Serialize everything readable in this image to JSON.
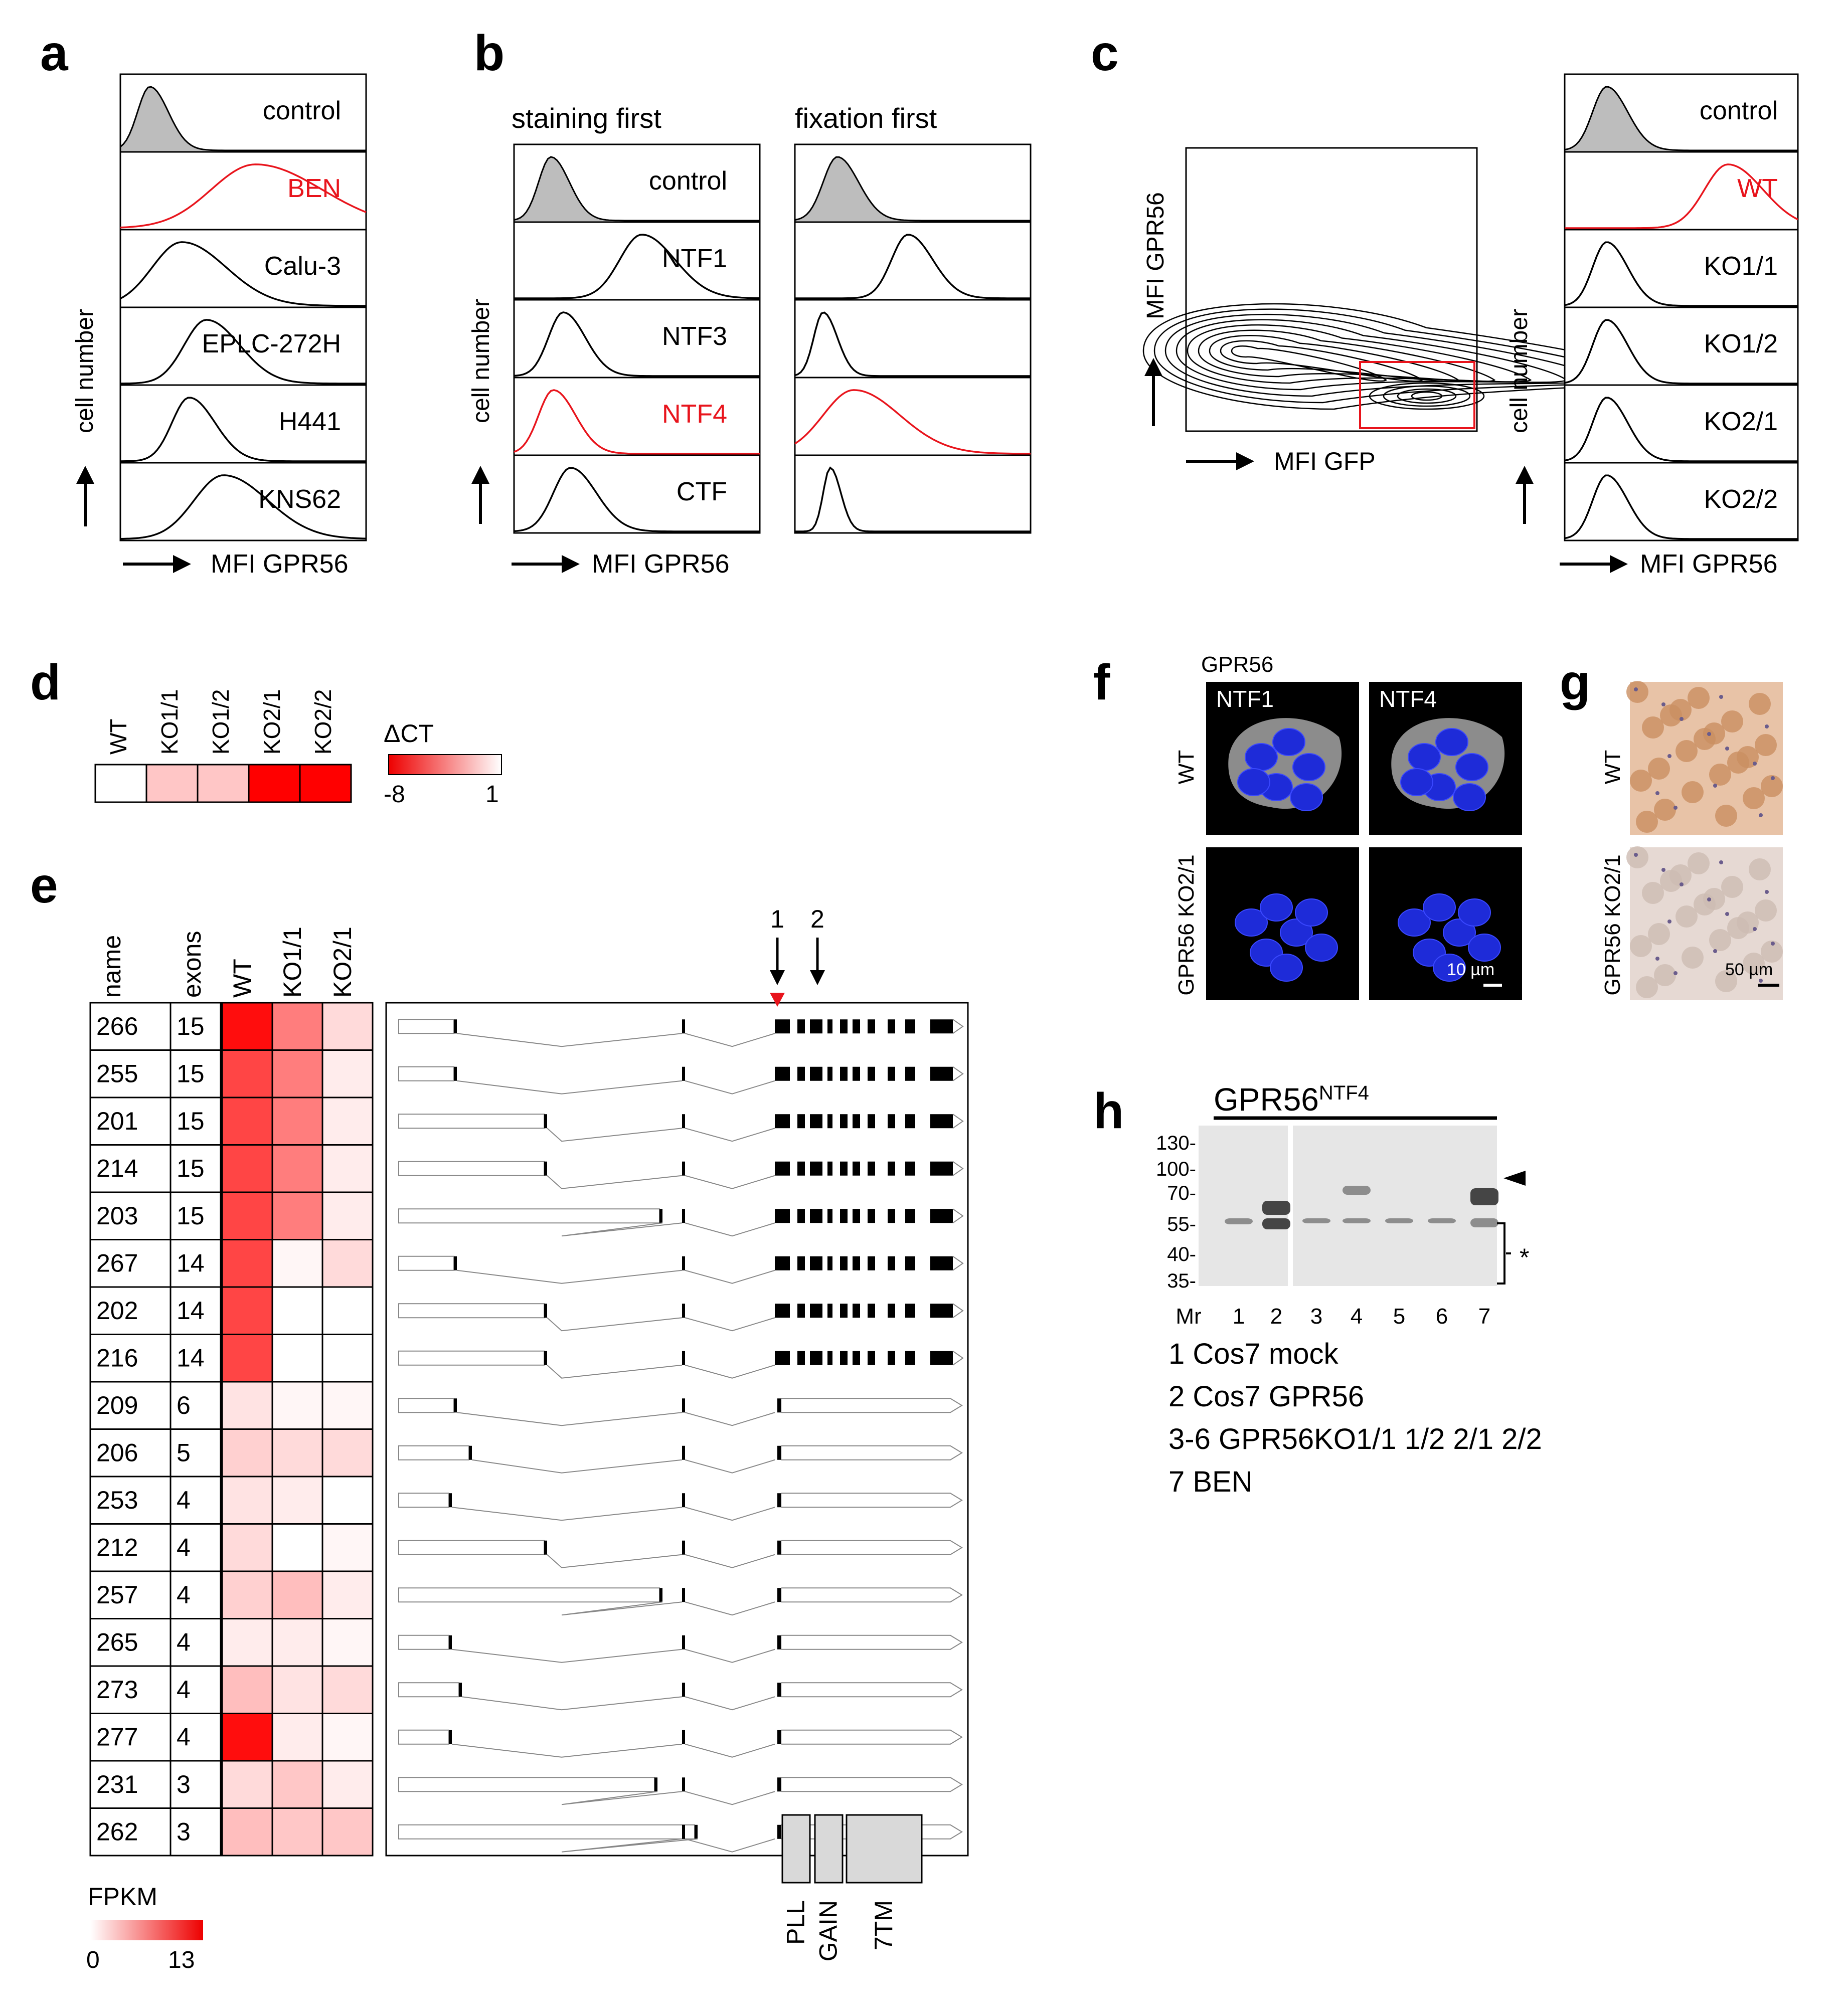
{
  "panels": {
    "a": {
      "letter": "a",
      "rows": [
        "control",
        "BEN",
        "Calu-3",
        "EPLC-272H",
        "H441",
        "KNS62"
      ],
      "row_colors": [
        "#000000",
        "#e8141c",
        "#000000",
        "#000000",
        "#000000",
        "#000000"
      ],
      "peaks": [
        0.12,
        0.55,
        0.25,
        0.35,
        0.28,
        0.42
      ],
      "widths": [
        0.05,
        0.18,
        0.12,
        0.09,
        0.07,
        0.12
      ],
      "shaded_control": true,
      "y_axis": "cell number",
      "x_axis": "MFI GPR56"
    },
    "b": {
      "letter": "b",
      "col_headers": [
        "staining first",
        "fixation first"
      ],
      "rows": [
        "control",
        "NTF1",
        "NTF3",
        "NTF4",
        "CTF"
      ],
      "row_colors": [
        "#000000",
        "#000000",
        "#000000",
        "#e8141c",
        "#000000"
      ],
      "peaks_staining": [
        0.15,
        0.52,
        0.2,
        0.16,
        0.23
      ],
      "peaks_fixation": [
        0.18,
        0.48,
        0.12,
        0.25,
        0.15
      ],
      "y_axis": "cell number",
      "x_axis": "MFI GPR56"
    },
    "c": {
      "letter": "c",
      "contour_y_axis": "MFI GPR56",
      "contour_x_axis": "MFI GFP",
      "rows": [
        "control",
        "WT",
        "KO1/1",
        "KO1/2",
        "KO2/1",
        "KO2/2"
      ],
      "row_colors": [
        "#000000",
        "#e8141c",
        "#000000",
        "#000000",
        "#000000",
        "#000000"
      ],
      "peaks": [
        0.18,
        0.7,
        0.18,
        0.18,
        0.18,
        0.18
      ],
      "y_axis": "cell number",
      "x_axis": "MFI GPR56"
    },
    "d": {
      "letter": "d",
      "columns": [
        "WT",
        "KO1/1",
        "KO1/2",
        "KO2/1",
        "KO2/2"
      ],
      "values": [
        1,
        -1,
        -1,
        -8,
        -8
      ],
      "legend_title": "ΔCT",
      "legend_min": "-8",
      "legend_max": "1"
    },
    "e": {
      "letter": "e",
      "headers": [
        "name",
        "exons",
        "WT",
        "KO1/1",
        "KO2/1"
      ],
      "rows": [
        {
          "name": "266",
          "exons": "15",
          "fpkm": [
            13,
            7,
            2
          ]
        },
        {
          "name": "255",
          "exons": "15",
          "fpkm": [
            10,
            7,
            1
          ]
        },
        {
          "name": "201",
          "exons": "15",
          "fpkm": [
            10,
            7,
            1
          ]
        },
        {
          "name": "214",
          "exons": "15",
          "fpkm": [
            10,
            7,
            1
          ]
        },
        {
          "name": "203",
          "exons": "15",
          "fpkm": [
            10,
            7,
            1
          ]
        },
        {
          "name": "267",
          "exons": "14",
          "fpkm": [
            10,
            0.5,
            2
          ]
        },
        {
          "name": "202",
          "exons": "14",
          "fpkm": [
            10,
            0,
            0
          ]
        },
        {
          "name": "216",
          "exons": "14",
          "fpkm": [
            10,
            0,
            0
          ]
        },
        {
          "name": "209",
          "exons": "6",
          "fpkm": [
            1.5,
            0.5,
            0.5
          ]
        },
        {
          "name": "206",
          "exons": "5",
          "fpkm": [
            2.5,
            2,
            2
          ]
        },
        {
          "name": "253",
          "exons": "4",
          "fpkm": [
            1.5,
            1,
            0
          ]
        },
        {
          "name": "212",
          "exons": "4",
          "fpkm": [
            2,
            0,
            0.5
          ]
        },
        {
          "name": "257",
          "exons": "4",
          "fpkm": [
            2.5,
            3.5,
            1
          ]
        },
        {
          "name": "265",
          "exons": "4",
          "fpkm": [
            1,
            1,
            0.5
          ]
        },
        {
          "name": "273",
          "exons": "4",
          "fpkm": [
            3.5,
            1.5,
            2
          ]
        },
        {
          "name": "277",
          "exons": "4",
          "fpkm": [
            13,
            1,
            0.5
          ]
        },
        {
          "name": "231",
          "exons": "3",
          "fpkm": [
            2,
            3,
            1
          ]
        },
        {
          "name": "262",
          "exons": "3",
          "fpkm": [
            3.5,
            3,
            3
          ]
        }
      ],
      "legend_title": "FPKM",
      "legend_min": "0",
      "legend_max": "13",
      "arrow_labels": [
        "1",
        "2"
      ],
      "domains": [
        "PLL",
        "GAIN",
        "7TM"
      ]
    },
    "f": {
      "letter": "f",
      "header": "GPR56",
      "col_labels": [
        "NTF1",
        "NTF4"
      ],
      "row_labels": [
        "WT",
        "GPR56 KO2/1"
      ],
      "scale": "10 µm"
    },
    "g": {
      "letter": "g",
      "row_labels": [
        "WT",
        "GPR56 KO2/1"
      ],
      "scale": "50 µm"
    },
    "h": {
      "letter": "h",
      "title": "GPR56",
      "title_sup": "NTF4",
      "markers": [
        "130-",
        "100-",
        "70-",
        "55-",
        "40-",
        "35-"
      ],
      "lanes": [
        "Mr",
        "1",
        "2",
        "3",
        "4",
        "5",
        "6",
        "7"
      ],
      "asterisk": "*",
      "legend": [
        "1 Cos7 mock",
        "2 Cos7 GPR56",
        "3-6 GPR56KO1/1  1/2  2/1  2/2",
        "7 BEN"
      ]
    }
  },
  "colors": {
    "red": "#e8141c",
    "shade": "#bdbdbd",
    "nucleus": "#1e2bd8",
    "ihc_brown": "#c98f62"
  }
}
